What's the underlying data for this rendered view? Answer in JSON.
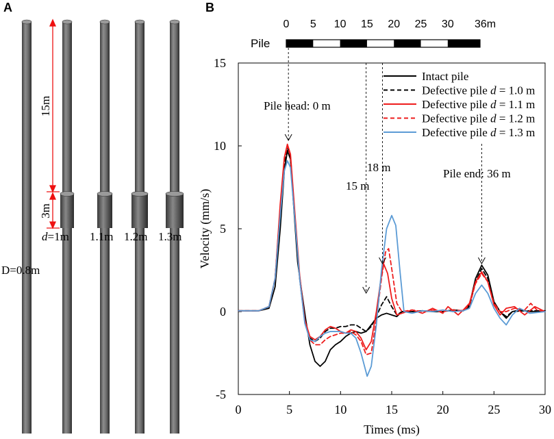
{
  "panel_a": {
    "letter": "A",
    "length_top": "15m",
    "length_defect": "3m",
    "diameter_label": "D=0.8m",
    "defect_labels": [
      {
        "prefix": "d",
        "value": "=1m"
      },
      {
        "prefix": "",
        "value": "1.1m"
      },
      {
        "prefix": "",
        "value": "1.2m"
      },
      {
        "prefix": "",
        "value": "1.3m"
      }
    ],
    "pile_diameters_m": [
      0.8,
      1.0,
      1.1,
      1.2,
      1.3
    ]
  },
  "panel_b": {
    "letter": "B",
    "scalebar": {
      "label": "Pile",
      "ticks": [
        "0",
        "5",
        "10",
        "15",
        "20",
        "25",
        "30",
        "36m"
      ],
      "tick_values_m": [
        0,
        5,
        10,
        15,
        20,
        25,
        30,
        36
      ],
      "max_m": 36
    },
    "annotations": {
      "pile_head": "Pile head: 0 m",
      "mark_15": "15 m",
      "mark_18": "18 m",
      "pile_end": "Pile end: 36 m"
    }
  },
  "chart_data": {
    "type": "line",
    "title": "",
    "xlabel": "Times (ms)",
    "ylabel": "Velocity (mm/s)",
    "xlim": [
      0,
      30
    ],
    "ylim": [
      -5,
      15
    ],
    "xticks": [
      0,
      5,
      10,
      15,
      20,
      25,
      30
    ],
    "yticks": [
      -5,
      0,
      5,
      10,
      15
    ],
    "legend_position": "top-right",
    "markers_ms": {
      "pile_head": 4.9,
      "m15": 12.5,
      "m18": 14.1,
      "pile_end": 23.8
    },
    "series": [
      {
        "name": "Intact pile",
        "name_prefix": "Intact pile",
        "name_italic": "",
        "name_suffix": "",
        "color": "#000000",
        "dash": "solid",
        "points": [
          [
            0,
            0.05
          ],
          [
            2,
            0.05
          ],
          [
            3,
            0.2
          ],
          [
            3.6,
            1.5
          ],
          [
            4.1,
            5
          ],
          [
            4.5,
            8.5
          ],
          [
            4.8,
            9.7
          ],
          [
            5.1,
            9.2
          ],
          [
            5.4,
            6.5
          ],
          [
            5.8,
            3
          ],
          [
            6.2,
            1.2
          ],
          [
            6.6,
            -0.5
          ],
          [
            7,
            -2
          ],
          [
            7.5,
            -3
          ],
          [
            8,
            -3.3
          ],
          [
            8.5,
            -3
          ],
          [
            9,
            -2.3
          ],
          [
            9.5,
            -2
          ],
          [
            10,
            -1.8
          ],
          [
            10.5,
            -1.5
          ],
          [
            11,
            -1.3
          ],
          [
            11.5,
            -1.2
          ],
          [
            12,
            -1.3
          ],
          [
            12.5,
            -1.2
          ],
          [
            13,
            -0.8
          ],
          [
            13.5,
            -0.4
          ],
          [
            14,
            -0.2
          ],
          [
            14.5,
            -0.1
          ],
          [
            15,
            -0.2
          ],
          [
            15.5,
            -0.3
          ],
          [
            16,
            0
          ],
          [
            17,
            0
          ],
          [
            18,
            0.05
          ],
          [
            19,
            0
          ],
          [
            20,
            0
          ],
          [
            21,
            0.1
          ],
          [
            22,
            0.05
          ],
          [
            22.6,
            0.4
          ],
          [
            23.2,
            2
          ],
          [
            23.8,
            2.8
          ],
          [
            24.4,
            2.2
          ],
          [
            25,
            0.6
          ],
          [
            25.6,
            0
          ],
          [
            26.2,
            -0.4
          ],
          [
            26.8,
            0
          ],
          [
            27.5,
            0.1
          ],
          [
            28.5,
            0
          ],
          [
            30,
            0.05
          ]
        ]
      },
      {
        "name": "Defective pile d = 1.0 m",
        "name_prefix": "Defective pile ",
        "name_italic": "d",
        "name_suffix": " = 1.0 m",
        "color": "#000000",
        "dash": "dashed",
        "points": [
          [
            0,
            0.05
          ],
          [
            2,
            0.05
          ],
          [
            3,
            0.3
          ],
          [
            3.6,
            2
          ],
          [
            4.1,
            6
          ],
          [
            4.5,
            9
          ],
          [
            4.8,
            9.9
          ],
          [
            5.1,
            9.3
          ],
          [
            5.5,
            6
          ],
          [
            6,
            2
          ],
          [
            6.5,
            -0.6
          ],
          [
            7,
            -1.6
          ],
          [
            7.5,
            -1.8
          ],
          [
            8,
            -1.6
          ],
          [
            8.5,
            -1.2
          ],
          [
            9,
            -1
          ],
          [
            9.5,
            -1
          ],
          [
            10,
            -0.9
          ],
          [
            10.5,
            -0.9
          ],
          [
            11,
            -0.8
          ],
          [
            11.5,
            -0.8
          ],
          [
            12,
            -1
          ],
          [
            12.5,
            -1.2
          ],
          [
            13,
            -0.9
          ],
          [
            13.5,
            -0.3
          ],
          [
            14,
            0.4
          ],
          [
            14.5,
            0.9
          ],
          [
            15,
            0.3
          ],
          [
            15.5,
            -0.2
          ],
          [
            16,
            0
          ],
          [
            17,
            0
          ],
          [
            18,
            0.05
          ],
          [
            19,
            0
          ],
          [
            20,
            0
          ],
          [
            21,
            0.1
          ],
          [
            22,
            0.05
          ],
          [
            22.6,
            0.3
          ],
          [
            23.2,
            1.8
          ],
          [
            23.8,
            2.6
          ],
          [
            24.4,
            2
          ],
          [
            25,
            0.5
          ],
          [
            25.6,
            0
          ],
          [
            26.2,
            -0.3
          ],
          [
            26.8,
            0
          ],
          [
            28,
            0.05
          ],
          [
            30,
            0.05
          ]
        ]
      },
      {
        "name": "Defective pile d = 1.1 m",
        "name_prefix": "Defective pile ",
        "name_italic": "d",
        "name_suffix": " = 1.1 m",
        "color": "#ee1c1c",
        "dash": "solid",
        "points": [
          [
            0,
            0.05
          ],
          [
            2,
            0.05
          ],
          [
            3,
            0.3
          ],
          [
            3.6,
            2
          ],
          [
            4.1,
            6.5
          ],
          [
            4.5,
            9.3
          ],
          [
            4.8,
            10.1
          ],
          [
            5.1,
            9.5
          ],
          [
            5.5,
            6.2
          ],
          [
            6,
            2.2
          ],
          [
            6.5,
            -0.5
          ],
          [
            7,
            -1.5
          ],
          [
            7.5,
            -1.7
          ],
          [
            8,
            -1.5
          ],
          [
            8.5,
            -1.1
          ],
          [
            9,
            -0.9
          ],
          [
            9.5,
            -1
          ],
          [
            10,
            -1.2
          ],
          [
            10.5,
            -1.3
          ],
          [
            11,
            -1.1
          ],
          [
            11.5,
            -1.2
          ],
          [
            12,
            -1.6
          ],
          [
            12.5,
            -2.3
          ],
          [
            13,
            -1.8
          ],
          [
            13.5,
            0
          ],
          [
            14,
            2.2
          ],
          [
            14.2,
            2.9
          ],
          [
            14.6,
            2.3
          ],
          [
            15,
            0.8
          ],
          [
            15.5,
            -0.2
          ],
          [
            16,
            -0.1
          ],
          [
            17,
            0.1
          ],
          [
            18,
            -0.1
          ],
          [
            19,
            0.2
          ],
          [
            20,
            -0.1
          ],
          [
            20.5,
            0.3
          ],
          [
            21.5,
            -0.2
          ],
          [
            22,
            0.1
          ],
          [
            22.6,
            0.5
          ],
          [
            23.2,
            1.8
          ],
          [
            23.8,
            2.4
          ],
          [
            24.4,
            1.8
          ],
          [
            25,
            0.4
          ],
          [
            25.6,
            -0.2
          ],
          [
            26.2,
            0.2
          ],
          [
            27,
            0.3
          ],
          [
            28,
            -0.2
          ],
          [
            29,
            0.3
          ],
          [
            30,
            0
          ]
        ]
      },
      {
        "name": "Defective pile d = 1.2 m",
        "name_prefix": "Defective pile ",
        "name_italic": "d",
        "name_suffix": " = 1.2 m",
        "color": "#ee1c1c",
        "dash": "dashed",
        "points": [
          [
            0,
            0.05
          ],
          [
            2,
            0.05
          ],
          [
            3,
            0.3
          ],
          [
            3.6,
            2
          ],
          [
            4.1,
            6.3
          ],
          [
            4.5,
            9.2
          ],
          [
            4.8,
            10
          ],
          [
            5.1,
            9.4
          ],
          [
            5.5,
            6
          ],
          [
            6,
            2
          ],
          [
            6.5,
            -0.6
          ],
          [
            7,
            -1.7
          ],
          [
            7.5,
            -2
          ],
          [
            8,
            -2
          ],
          [
            8.5,
            -1.7
          ],
          [
            9,
            -1.5
          ],
          [
            9.5,
            -1.4
          ],
          [
            10,
            -1.3
          ],
          [
            10.5,
            -1.3
          ],
          [
            11,
            -1.2
          ],
          [
            11.5,
            -1.4
          ],
          [
            12,
            -1.8
          ],
          [
            12.5,
            -2.6
          ],
          [
            13,
            -2.5
          ],
          [
            13.5,
            -0.5
          ],
          [
            14,
            2
          ],
          [
            14.4,
            3.6
          ],
          [
            14.7,
            3.8
          ],
          [
            15,
            2.6
          ],
          [
            15.5,
            0.5
          ],
          [
            16,
            0
          ],
          [
            17,
            0.1
          ],
          [
            18,
            0
          ],
          [
            19,
            0.1
          ],
          [
            20,
            0
          ],
          [
            21,
            0.1
          ],
          [
            22,
            0.05
          ],
          [
            22.6,
            0.4
          ],
          [
            23.2,
            1.7
          ],
          [
            23.8,
            2.3
          ],
          [
            24.4,
            1.8
          ],
          [
            25,
            0.5
          ],
          [
            25.6,
            0
          ],
          [
            26.2,
            0
          ],
          [
            27,
            0.2
          ],
          [
            28,
            0.1
          ],
          [
            28.6,
            0.5
          ],
          [
            29.2,
            0.1
          ],
          [
            30,
            0
          ]
        ]
      },
      {
        "name": "Defective pile d = 1.3 m",
        "name_prefix": "Defective pile ",
        "name_italic": "d",
        "name_suffix": " = 1.3 m",
        "color": "#5b9bd5",
        "dash": "solid",
        "points": [
          [
            0,
            0.05
          ],
          [
            2,
            0.05
          ],
          [
            3,
            0.3
          ],
          [
            3.6,
            2
          ],
          [
            4.1,
            5.8
          ],
          [
            4.5,
            8.5
          ],
          [
            4.8,
            9.1
          ],
          [
            5.1,
            8.7
          ],
          [
            5.5,
            5.8
          ],
          [
            6,
            2
          ],
          [
            6.5,
            -0.7
          ],
          [
            7,
            -1.7
          ],
          [
            7.5,
            -1.8
          ],
          [
            8,
            -1.5
          ],
          [
            8.5,
            -1.3
          ],
          [
            9,
            -1.2
          ],
          [
            9.5,
            -1.2
          ],
          [
            10,
            -1.2
          ],
          [
            10.5,
            -1.3
          ],
          [
            11,
            -1.3
          ],
          [
            11.5,
            -1.6
          ],
          [
            12,
            -2.5
          ],
          [
            12.6,
            -3.9
          ],
          [
            13,
            -3.3
          ],
          [
            13.5,
            -0.8
          ],
          [
            14,
            2.5
          ],
          [
            14.5,
            5
          ],
          [
            15,
            5.8
          ],
          [
            15.4,
            5.2
          ],
          [
            15.8,
            2.5
          ],
          [
            16.2,
            0
          ],
          [
            17,
            -0.1
          ],
          [
            18,
            0.05
          ],
          [
            19,
            0
          ],
          [
            20,
            0.1
          ],
          [
            21,
            0
          ],
          [
            22,
            0.05
          ],
          [
            22.6,
            0.2
          ],
          [
            23.2,
            1.1
          ],
          [
            23.8,
            1.6
          ],
          [
            24.4,
            1.1
          ],
          [
            25,
            0.2
          ],
          [
            25.6,
            -0.4
          ],
          [
            26.2,
            -0.8
          ],
          [
            26.8,
            -0.2
          ],
          [
            27.5,
            0.2
          ],
          [
            28.5,
            -0.1
          ],
          [
            30,
            0
          ]
        ]
      }
    ]
  }
}
